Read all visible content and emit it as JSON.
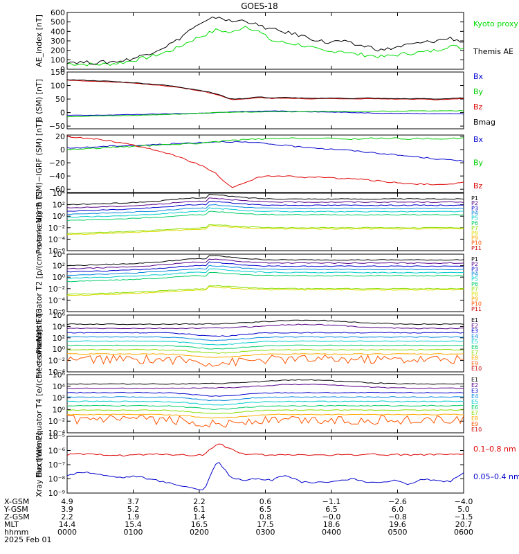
{
  "title": "GOES-18",
  "chart_data": [
    {
      "type": "line",
      "ylabel": "AE_index [nT]",
      "ylim": [
        0,
        600
      ],
      "yticks": [
        "0",
        "100",
        "200",
        "300",
        "400",
        "500",
        "600"
      ],
      "series": [
        {
          "name": "Kyoto proxy AE",
          "color": "#00dd00",
          "values": [
            60,
            55,
            50,
            55,
            70,
            100,
            130,
            170,
            220,
            300,
            360,
            420,
            380,
            460,
            400,
            300,
            280,
            260,
            220,
            180,
            200,
            160,
            150,
            130,
            150,
            170,
            180,
            200,
            250,
            220
          ]
        },
        {
          "name": "Themis AE",
          "color": "#000000",
          "values": [
            80,
            75,
            70,
            75,
            90,
            120,
            170,
            230,
            300,
            420,
            490,
            560,
            500,
            520,
            460,
            420,
            390,
            360,
            320,
            280,
            300,
            260,
            240,
            200,
            230,
            260,
            280,
            300,
            330,
            290
          ]
        }
      ]
    },
    {
      "type": "line",
      "ylabel": "B (SM) [nT]",
      "ylim": [
        -60,
        150
      ],
      "yticks": [
        "−50",
        "0",
        "50",
        "100",
        "150"
      ],
      "series": [
        {
          "name": "Bx",
          "color": "#0000cc",
          "values": [
            -10,
            -10,
            -10,
            -9,
            -8,
            -7,
            -6,
            -5,
            -4,
            -3,
            -2,
            0,
            2,
            4,
            5,
            6,
            5,
            4,
            3,
            2,
            1,
            0,
            -1,
            -2,
            -3,
            -3,
            -4,
            -4,
            -4,
            -5
          ]
        },
        {
          "name": "By",
          "color": "#00cc00",
          "values": [
            -15,
            -14,
            -13,
            -12,
            -11,
            -10,
            -9,
            -8,
            -6,
            -4,
            -2,
            0,
            1,
            2,
            2,
            3,
            3,
            3,
            4,
            4,
            4,
            5,
            5,
            5,
            5,
            6,
            6,
            6,
            6,
            7
          ]
        },
        {
          "name": "Bz",
          "color": "#dd0000",
          "values": [
            120,
            118,
            116,
            114,
            111,
            108,
            104,
            100,
            94,
            86,
            78,
            66,
            48,
            50,
            56,
            52,
            54,
            52,
            50,
            52,
            51,
            50,
            52,
            50,
            50,
            49,
            50,
            48,
            50,
            52
          ]
        },
        {
          "name": "Bmag",
          "color": "#000000",
          "values": [
            122,
            120,
            118,
            116,
            113,
            110,
            106,
            102,
            96,
            88,
            80,
            68,
            50,
            52,
            58,
            54,
            56,
            54,
            52,
            54,
            53,
            52,
            54,
            52,
            52,
            51,
            52,
            50,
            52,
            54
          ]
        }
      ]
    },
    {
      "type": "line",
      "ylabel": "B (SM)−IGRF (SM) [nT]",
      "ylim": [
        -65,
        22
      ],
      "yticks": [
        "−60",
        "−40",
        "−20",
        "0",
        "20"
      ],
      "series": [
        {
          "name": "Bx",
          "color": "#0000cc",
          "values": [
            2,
            3,
            4,
            5,
            6,
            6,
            7,
            8,
            9,
            10,
            11,
            12,
            12,
            11,
            10,
            8,
            6,
            4,
            3,
            1,
            0,
            -2,
            -4,
            -6,
            -8,
            -10,
            -12,
            -14,
            -16,
            -17
          ]
        },
        {
          "name": "By",
          "color": "#00cc00",
          "values": [
            0,
            1,
            2,
            3,
            4,
            5,
            6,
            7,
            8,
            9,
            10,
            12,
            14,
            15,
            16,
            16,
            17,
            17,
            17,
            17,
            16,
            16,
            17,
            17,
            17,
            16,
            17,
            16,
            17,
            17
          ]
        },
        {
          "name": "Bz",
          "color": "#dd0000",
          "values": [
            20,
            18,
            16,
            14,
            10,
            6,
            2,
            -4,
            -10,
            -18,
            -26,
            -38,
            -58,
            -50,
            -42,
            -40,
            -40,
            -42,
            -42,
            -42,
            -44,
            -44,
            -46,
            -48,
            -50,
            -52,
            -52,
            -54,
            -52,
            -50
          ]
        }
      ]
    },
    {
      "type": "line",
      "ylabel": "Protons North T1",
      "ylog": true,
      "ylim": [
        -6,
        4
      ],
      "yticks": [
        "10⁴",
        "10²",
        "10⁰",
        "10⁻²",
        "10⁻⁴",
        "10⁻⁶"
      ],
      "labels": [
        "P1",
        "P2",
        "P3",
        "P4",
        "P5",
        "P6",
        "P7",
        "P8",
        "P9",
        "P10",
        "P11"
      ]
    },
    {
      "type": "line",
      "ylabel": "Protons Equator T2 [p/(cm²-s-sr-keV)]",
      "ylog": true,
      "ylim": [
        -6,
        4
      ],
      "yticks": [
        "10⁴",
        "10²",
        "10⁰",
        "10⁻²",
        "10⁻⁴",
        "10⁻⁶"
      ],
      "labels": [
        "P1",
        "P2",
        "P3",
        "P4",
        "P5",
        "P6",
        "P7",
        "P8",
        "P9",
        "P10",
        "P11"
      ]
    },
    {
      "type": "line",
      "ylabel": "Electrons North T3",
      "ylog": true,
      "ylim": [
        -4,
        6
      ],
      "yticks": [
        "10⁶",
        "10⁴",
        "10²",
        "10⁰",
        "10⁻²",
        "10⁻⁴"
      ],
      "labels": [
        "E1",
        "E2",
        "E3",
        "E4",
        "E5",
        "E6",
        "E7",
        "E8",
        "E9",
        "E10"
      ]
    },
    {
      "type": "line",
      "ylabel": "Electrons Equator T4 [e/(cm²-s-sr-keV)]",
      "ylog": true,
      "ylim": [
        -4,
        6
      ],
      "yticks": [
        "10⁶",
        "10⁴",
        "10²",
        "10⁰",
        "10⁻²",
        "10⁻⁴"
      ],
      "labels": [
        "E1",
        "E2",
        "E3",
        "E4",
        "E5",
        "E6",
        "E7",
        "E8",
        "E9",
        "E10"
      ]
    },
    {
      "type": "line",
      "ylabel": "Xray flux [W/m2]",
      "ylog": true,
      "ylim": [
        -9,
        -5
      ],
      "yticks": [
        "10⁻⁵",
        "10⁻⁶",
        "10⁻⁷",
        "10⁻⁸",
        "10⁻⁹"
      ],
      "series": [
        {
          "name": "0.1–0.8 nm",
          "color": "#dd0000",
          "values": [
            -6.3,
            -6.25,
            -6.3,
            -6.3,
            -6.35,
            -6.3,
            -6.3,
            -6.25,
            -6.3,
            -6.35,
            -6.3,
            -5.5,
            -5.9,
            -6.3,
            -6.3,
            -6.35,
            -6.3,
            -6.3,
            -6.3,
            -6.35,
            -6.3,
            -6.3,
            -6.25,
            -6.3,
            -6.3,
            -6.3,
            -6.3,
            -6.3,
            -6.3,
            -6.3
          ]
        },
        {
          "name": "0.05–0.4 nm",
          "color": "#0000cc",
          "values": [
            -7.8,
            -7.5,
            -7.6,
            -7.8,
            -7.9,
            -7.8,
            -8.0,
            -8.2,
            -8.4,
            -8.6,
            -8.8,
            -6.7,
            -7.9,
            -8.1,
            -8.0,
            -8.1,
            -7.7,
            -8.2,
            -8.3,
            -8.2,
            -8.1,
            -8.0,
            -8.3,
            -8.2,
            -8.1,
            -8.4,
            -8.0,
            -8.1,
            -8.2,
            -7.6
          ]
        }
      ]
    }
  ],
  "footer": {
    "labels": [
      "X-GSM",
      "Y-GSM",
      "Z-GSM",
      "MLT",
      "hhmm",
      "2025 Feb 01"
    ],
    "columns": [
      {
        "x_gsm": "4.9",
        "y_gsm": "3.9",
        "z_gsm": "2.2",
        "mlt": "14.4",
        "hhmm": "0000"
      },
      {
        "x_gsm": "3.7",
        "y_gsm": "5.2",
        "z_gsm": "1.9",
        "mlt": "15.4",
        "hhmm": "0100"
      },
      {
        "x_gsm": "2.2",
        "y_gsm": "6.1",
        "z_gsm": "1.4",
        "mlt": "16.5",
        "hhmm": "0200"
      },
      {
        "x_gsm": "0.6",
        "y_gsm": "6.5",
        "z_gsm": "0.8",
        "mlt": "17.5",
        "hhmm": "0300"
      },
      {
        "x_gsm": "−1.1",
        "y_gsm": "6.5",
        "z_gsm": "−0.0",
        "mlt": "18.6",
        "hhmm": "0400"
      },
      {
        "x_gsm": "−2.6",
        "y_gsm": "6.0",
        "z_gsm": "−0.8",
        "mlt": "19.6",
        "hhmm": "0500"
      },
      {
        "x_gsm": "−4.0",
        "y_gsm": "5.0",
        "z_gsm": "−1.5",
        "mlt": "20.7",
        "hhmm": "0600"
      }
    ]
  }
}
